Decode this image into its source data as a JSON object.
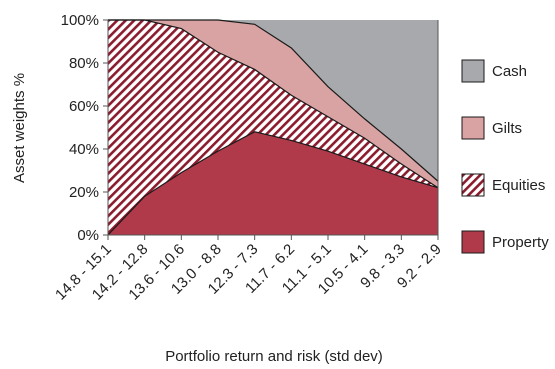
{
  "chart_data": {
    "type": "area",
    "stacked": true,
    "xlabel": "Portfolio return and risk (std dev)",
    "ylabel": "Asset weights %",
    "ylim": [
      0,
      100
    ],
    "yticks": [
      "0%",
      "20%",
      "40%",
      "60%",
      "80%",
      "100%"
    ],
    "categories": [
      "14.8 - 15.1",
      "14.2 - 12.8",
      "13.6 - 10.6",
      "13.0 - 8.8",
      "12.3 - 7.3",
      "11.7 - 6.2",
      "11.1 - 5.1",
      "10.5 - 4.1",
      "9.8 - 3.3",
      "9.2 - 2.9"
    ],
    "series": [
      {
        "name": "Property",
        "values": [
          0,
          18,
          29,
          39,
          48,
          44,
          39,
          33,
          27,
          22
        ]
      },
      {
        "name": "Equities",
        "values": [
          100,
          82,
          67,
          46,
          29,
          21,
          16,
          12,
          6,
          0
        ]
      },
      {
        "name": "Gilts",
        "values": [
          0,
          0,
          4,
          15,
          21,
          22,
          14,
          9,
          7,
          3
        ]
      },
      {
        "name": "Cash",
        "values": [
          0,
          0,
          0,
          0,
          2,
          13,
          31,
          46,
          60,
          75
        ]
      }
    ],
    "legend_order": [
      "Cash",
      "Gilts",
      "Equities",
      "Property"
    ],
    "legend_position": "right",
    "colors": {
      "Property": "#b03a4a",
      "Equities": "#8b1c2e",
      "Gilts": "#d9a3a4",
      "Cash": "#a7a9ac"
    },
    "grid": false,
    "edge_color": "#1a1a1a"
  }
}
